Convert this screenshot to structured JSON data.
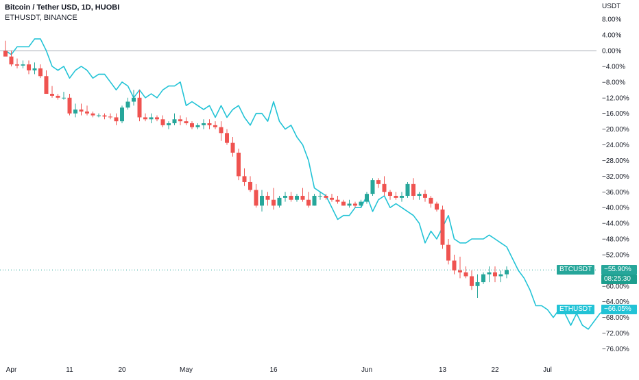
{
  "legend": {
    "title": "Bitcoin / Tether USD, 1D, HUOBI",
    "compare": "ETHUSDT, BINANCE"
  },
  "axis": {
    "currency": "USDT",
    "y_ticks": [
      "8.00%",
      "4.00%",
      "0.00%",
      "−4.00%",
      "−8.00%",
      "−12.00%",
      "−16.00%",
      "−20.00%",
      "−24.00%",
      "−28.00%",
      "−32.00%",
      "−36.00%",
      "−40.00%",
      "−44.00%",
      "−48.00%",
      "−52.00%",
      "−56.00%",
      "−60.00%",
      "−64.00%",
      "−68.00%",
      "−72.00%",
      "−76.00%"
    ],
    "x_ticks": [
      "Apr",
      "11",
      "20",
      "May",
      "16",
      "Jun",
      "13",
      "22",
      "Jul"
    ]
  },
  "tags": {
    "btc_symbol": "BTCUSDT",
    "btc_value": "−55.90%",
    "btc_timer": "08:25:30",
    "eth_symbol": "ETHUSDT",
    "eth_value": "−66.05%"
  },
  "colors": {
    "up": "#26a69a",
    "down": "#ef5350",
    "eth_line": "#22c3d6",
    "btc_tag": "#26a69a",
    "eth_tag": "#22c3d6",
    "zero_line": "#b2b5be"
  },
  "chart_data": {
    "type": "candlestick-compare",
    "y_unit": "percent change",
    "ylim": [
      -78,
      10
    ],
    "x_labels": [
      "Apr",
      "11",
      "20",
      "May",
      "16",
      "Jun",
      "13",
      "22",
      "Jul"
    ],
    "x_label_index": [
      1,
      11,
      20,
      31,
      46,
      62,
      75,
      84,
      93
    ],
    "btc_candles": [
      [
        0,
        2.5,
        0,
        -5.5,
        -1.5
      ],
      [
        -1.5,
        0,
        -4,
        -5,
        -3.5
      ],
      [
        -3.5,
        -2,
        -4.5,
        -5,
        -3.8
      ],
      [
        -3.8,
        -2.5,
        -4.5,
        -5.5,
        -3.5
      ],
      [
        -3.5,
        -2.5,
        -6,
        -7,
        -5
      ],
      [
        -5,
        -3,
        -6,
        -7,
        -4.5
      ],
      [
        -4.5,
        -3.5,
        -7,
        -7.5,
        -6.5
      ],
      [
        -6.5,
        -5,
        -10,
        -12,
        -11
      ],
      [
        -11,
        -9,
        -12,
        -12.5,
        -11.5
      ],
      [
        -11.5,
        -11,
        -12.5,
        -13,
        -12
      ],
      [
        -12,
        -10.5,
        -12.5,
        -13,
        -12
      ],
      [
        -12,
        -11,
        -16.5,
        -17,
        -16
      ],
      [
        -16,
        -13.5,
        -17,
        -18,
        -15
      ],
      [
        -15,
        -13.5,
        -16.5,
        -18,
        -15.5
      ],
      [
        -15.5,
        -14,
        -16.5,
        -17.5,
        -16
      ],
      [
        -16,
        -15.5,
        -17,
        -17.5,
        -16.5
      ],
      [
        -16.5,
        -16,
        -17,
        -17.5,
        -16.5
      ],
      [
        -16.5,
        -16,
        -17.5,
        -17.5,
        -16.8
      ],
      [
        -16.8,
        -16,
        -17.5,
        -18.5,
        -17
      ],
      [
        -17,
        -16,
        -19,
        -20,
        -18
      ],
      [
        -18,
        -14,
        -18.5,
        -19,
        -14.5
      ],
      [
        -14.5,
        -12,
        -15,
        -15.5,
        -13
      ],
      [
        -13,
        -10,
        -14,
        -14,
        -12
      ],
      [
        -12,
        -10,
        -18,
        -19,
        -17
      ],
      [
        -17,
        -16,
        -18,
        -19,
        -17.5
      ],
      [
        -17.5,
        -16,
        -18.5,
        -18.5,
        -17
      ],
      [
        -17,
        -16.5,
        -18,
        -19,
        -17.5
      ],
      [
        -17.5,
        -16.5,
        -19.5,
        -20,
        -19
      ],
      [
        -19,
        -18,
        -20,
        -21,
        -18.5
      ],
      [
        -18.5,
        -16,
        -19,
        -20,
        -17.5
      ],
      [
        -17.5,
        -16.5,
        -19,
        -20,
        -18
      ],
      [
        -18,
        -17,
        -19,
        -20,
        -18.5
      ],
      [
        -18.5,
        -18,
        -20,
        -20.5,
        -19.5
      ],
      [
        -19.5,
        -18.5,
        -20,
        -21,
        -19
      ],
      [
        -19,
        -17.5,
        -20,
        -20,
        -18.5
      ],
      [
        -18.5,
        -17.5,
        -20,
        -20.5,
        -19
      ],
      [
        -19,
        -18,
        -20,
        -20.5,
        -19.5
      ],
      [
        -19.5,
        -18,
        -23,
        -23,
        -21
      ],
      [
        -21,
        -20,
        -24,
        -25,
        -23.5
      ],
      [
        -23.5,
        -22,
        -27,
        -28,
        -26
      ],
      [
        -26,
        -25,
        -33,
        -34,
        -32
      ],
      [
        -32,
        -30,
        -34.5,
        -35,
        -33.5
      ],
      [
        -33.5,
        -32,
        -36,
        -37,
        -35.5
      ],
      [
        -35.5,
        -34,
        -40,
        -41,
        -39.5
      ],
      [
        -39.5,
        -35.5,
        -41,
        -41.5,
        -37
      ],
      [
        -37,
        -36,
        -39.5,
        -40,
        -38
      ],
      [
        -38,
        -35,
        -40.5,
        -41,
        -39.5
      ],
      [
        -39.5,
        -37,
        -40,
        -40,
        -37.5
      ],
      [
        -37.5,
        -36,
        -38.5,
        -39,
        -37
      ],
      [
        -37,
        -36,
        -38.5,
        -39.5,
        -38
      ],
      [
        -38,
        -36.5,
        -38.5,
        -39,
        -37
      ],
      [
        -37,
        -35,
        -38.5,
        -39.5,
        -38
      ],
      [
        -38,
        -36,
        -40,
        -40.5,
        -39.5
      ],
      [
        -39.5,
        -36.5,
        -39.5,
        -40,
        -37
      ],
      [
        -37,
        -36,
        -38,
        -38.5,
        -37
      ],
      [
        -37,
        -36.5,
        -38,
        -38,
        -37.5
      ],
      [
        -37.5,
        -36.5,
        -38.5,
        -39,
        -38
      ],
      [
        -38,
        -37,
        -39,
        -40,
        -38.5
      ],
      [
        -38.5,
        -38,
        -39.5,
        -40,
        -39.5
      ],
      [
        -39.5,
        -38,
        -40,
        -40.5,
        -39
      ],
      [
        -39,
        -38.5,
        -40,
        -40.5,
        -39.5
      ],
      [
        -39.5,
        -38,
        -40,
        -40.5,
        -38.5
      ],
      [
        -38.5,
        -36,
        -39,
        -39.5,
        -36.5
      ],
      [
        -36.5,
        -32.5,
        -37,
        -37.5,
        -33
      ],
      [
        -33,
        -32.5,
        -35,
        -35.5,
        -34
      ],
      [
        -34,
        -32,
        -37,
        -37.5,
        -36
      ],
      [
        -36,
        -35.5,
        -38,
        -38.5,
        -37
      ],
      [
        -37,
        -36,
        -38,
        -38.5,
        -37.5
      ],
      [
        -37.5,
        -36,
        -38.5,
        -39,
        -37
      ],
      [
        -37,
        -33.5,
        -37.5,
        -38,
        -34
      ],
      [
        -34,
        -32.5,
        -38,
        -38.5,
        -37
      ],
      [
        -37,
        -36,
        -38,
        -38.5,
        -36.5
      ],
      [
        -36.5,
        -35.5,
        -38.5,
        -39,
        -37.5
      ],
      [
        -37.5,
        -37,
        -40,
        -40.5,
        -39
      ],
      [
        -39,
        -38.5,
        -41,
        -42,
        -40.5
      ],
      [
        -40.5,
        -39.5,
        -50.5,
        -51,
        -49.5
      ],
      [
        -49.5,
        -48,
        -54.5,
        -55,
        -53.5
      ],
      [
        -53.5,
        -52,
        -57,
        -58,
        -56
      ],
      [
        -56,
        -52.5,
        -58,
        -59,
        -56.5
      ],
      [
        -56.5,
        -55,
        -58,
        -58.5,
        -57.5
      ],
      [
        -57.5,
        -56,
        -61,
        -62,
        -60
      ],
      [
        -60,
        -57,
        -63,
        -64,
        -59
      ],
      [
        -59,
        -56.5,
        -59.5,
        -60,
        -57
      ],
      [
        -57,
        -55,
        -59,
        -59.5,
        -56.5
      ],
      [
        -56.5,
        -55,
        -59,
        -59,
        -57.5
      ],
      [
        -57.5,
        -56,
        -59,
        -59.5,
        -57
      ],
      [
        -57,
        -55,
        -58,
        -58,
        -55.9
      ]
    ],
    "eth_line": [
      0,
      -1,
      1,
      1,
      1,
      3,
      3,
      0,
      -4,
      -5,
      -4,
      -7,
      -5,
      -4,
      -5,
      -7,
      -6,
      -6,
      -8,
      -10,
      -8,
      -9,
      -12,
      -10,
      -12,
      -11,
      -12,
      -10,
      -9,
      -9,
      -8,
      -14,
      -13,
      -14,
      -15,
      -14,
      -17,
      -14,
      -17,
      -15,
      -14,
      -17,
      -19,
      -16,
      -16,
      -18,
      -13,
      -18,
      -20,
      -19,
      -22,
      -24,
      -28,
      -35,
      -36,
      -37,
      -40,
      -43,
      -42,
      -42,
      -40,
      -40,
      -37,
      -41,
      -38,
      -37,
      -40,
      -39,
      -40,
      -41,
      -42,
      -44,
      -49,
      -46,
      -48,
      -45,
      -42,
      -48,
      -49,
      -49,
      -48,
      -48,
      -48,
      -47,
      -48,
      -49,
      -50,
      -53,
      -56,
      -58,
      -61,
      -65,
      -65,
      -66,
      -68,
      -66,
      -67,
      -70,
      -67,
      -70,
      -71,
      -69,
      -67,
      -66.05
    ]
  }
}
